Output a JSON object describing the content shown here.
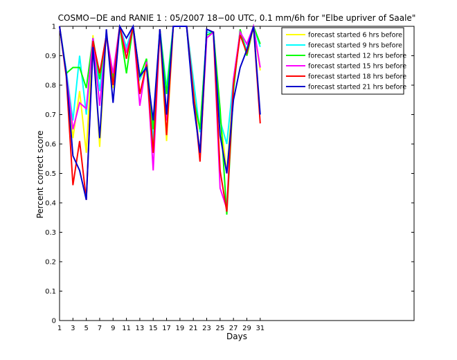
{
  "chart_data": {
    "type": "line",
    "title": "COSMO−DE and RANIE 1 : 05/2007 18−00 UTC, 0.1 mm/6h for \"Elbe upriver of Saale\"",
    "xlabel": "Days",
    "ylabel": "Percent correct score",
    "xlim": [
      1,
      54
    ],
    "ylim": [
      0,
      1
    ],
    "xticks": [
      1,
      3,
      5,
      7,
      9,
      11,
      13,
      15,
      17,
      19,
      21,
      23,
      25,
      27,
      29,
      31
    ],
    "yticks": [
      0,
      0.1,
      0.2,
      0.3,
      0.4,
      0.5,
      0.6,
      0.7,
      0.8,
      0.9,
      1
    ],
    "ytick_labels": [
      "0",
      "0.1",
      "0.2",
      "0.3",
      "0.4",
      "0.5",
      "0.6",
      "0.7",
      "0.8",
      "0.9",
      "1"
    ],
    "legend_position": "top-right",
    "x": [
      1,
      2,
      3,
      4,
      5,
      6,
      7,
      8,
      9,
      10,
      11,
      12,
      13,
      14,
      15,
      16,
      17,
      18,
      19,
      20,
      21,
      22,
      23,
      24,
      25,
      26,
      27,
      28,
      29,
      30,
      31
    ],
    "series": [
      {
        "name": "forecast started 6 hrs before",
        "color": "#ffff00",
        "values": [
          1.0,
          0.85,
          0.62,
          0.78,
          0.57,
          0.97,
          0.59,
          0.98,
          0.79,
          1.0,
          0.92,
          1.0,
          0.82,
          0.86,
          0.57,
          0.99,
          0.61,
          1.0,
          1.0,
          1.0,
          0.8,
          0.56,
          0.98,
          0.98,
          0.7,
          0.5,
          0.8,
          0.98,
          0.92,
          1.0,
          0.85
        ]
      },
      {
        "name": "forecast started 9 hrs before",
        "color": "#00ffff",
        "values": [
          1.0,
          0.85,
          0.68,
          0.9,
          0.7,
          0.96,
          0.78,
          0.97,
          0.83,
          1.0,
          0.93,
          1.0,
          0.82,
          0.87,
          0.61,
          0.99,
          0.79,
          1.0,
          1.0,
          1.0,
          0.82,
          0.64,
          0.98,
          0.98,
          0.68,
          0.6,
          0.82,
          0.98,
          0.92,
          1.0,
          0.93
        ]
      },
      {
        "name": "forecast started 12 hrs before",
        "color": "#00ff00",
        "values": [
          1.0,
          0.84,
          0.86,
          0.86,
          0.79,
          0.96,
          0.82,
          0.97,
          0.82,
          1.0,
          0.84,
          1.0,
          0.83,
          0.89,
          0.65,
          0.99,
          0.77,
          1.0,
          1.0,
          1.0,
          0.76,
          0.65,
          0.97,
          0.98,
          0.72,
          0.36,
          0.78,
          0.99,
          0.9,
          1.0,
          0.94
        ]
      },
      {
        "name": "forecast started 15 hrs before",
        "color": "#ff00ff",
        "values": [
          1.0,
          0.84,
          0.65,
          0.74,
          0.72,
          0.96,
          0.73,
          0.97,
          0.84,
          1.0,
          0.91,
          1.0,
          0.73,
          0.88,
          0.51,
          0.99,
          0.68,
          1.0,
          1.0,
          1.0,
          0.77,
          0.56,
          0.96,
          0.98,
          0.45,
          0.38,
          0.82,
          0.98,
          0.94,
          1.0,
          0.86
        ]
      },
      {
        "name": "forecast started 18 hrs before",
        "color": "#ff0000",
        "values": [
          1.0,
          0.83,
          0.46,
          0.61,
          0.41,
          0.95,
          0.84,
          0.97,
          0.8,
          1.0,
          0.89,
          1.0,
          0.77,
          0.87,
          0.57,
          0.99,
          0.63,
          1.0,
          1.0,
          1.0,
          0.78,
          0.54,
          0.99,
          0.98,
          0.51,
          0.37,
          0.8,
          0.97,
          0.91,
          1.0,
          0.67
        ]
      },
      {
        "name": "forecast started 21 hrs before",
        "color": "#0000cc",
        "values": [
          1.0,
          0.84,
          0.56,
          0.51,
          0.41,
          0.93,
          0.62,
          0.99,
          0.74,
          1.0,
          0.96,
          1.0,
          0.83,
          0.86,
          0.68,
          0.99,
          0.7,
          1.0,
          1.0,
          1.0,
          0.74,
          0.57,
          0.99,
          0.98,
          0.63,
          0.5,
          0.75,
          0.86,
          0.92,
          1.0,
          0.7
        ]
      }
    ]
  }
}
